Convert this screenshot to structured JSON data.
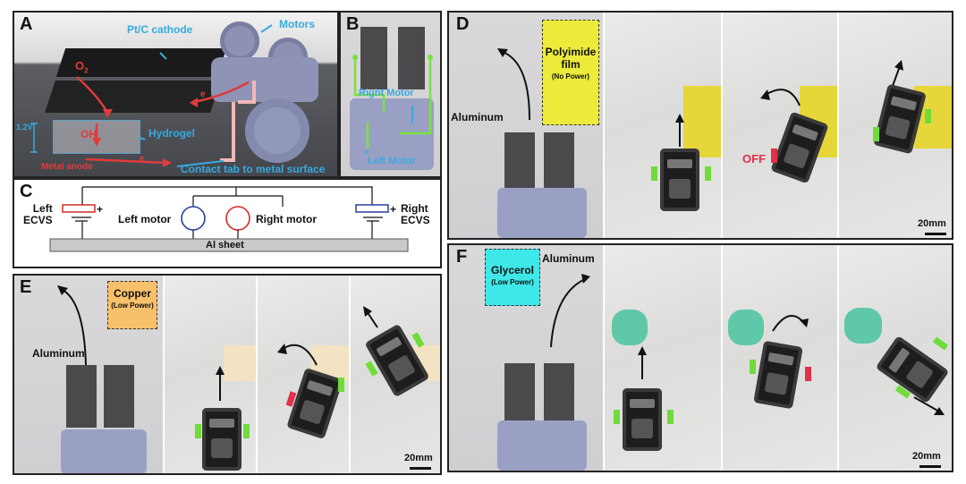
{
  "panels": {
    "A": {
      "label": "A",
      "cathode": "Pt/C cathode",
      "motors": "Motors",
      "o2": "O",
      "o2_sub": "2",
      "voltage": "1.2V",
      "oh": "OH",
      "oh_sup": "-",
      "hydrogel": "Hydrogel",
      "metal_anode": "Metal anode",
      "e1": "e",
      "e2": "e",
      "contact_tab": "Contact tab to metal surface"
    },
    "B": {
      "label": "B",
      "right_motor": "Right Motor",
      "left_motor": "Left Motor"
    },
    "C": {
      "label": "C",
      "left_ecvs": "Left\nECVS",
      "left_motor": "Left motor",
      "right_motor": "Right motor",
      "right_ecvs": "Right\nECVS",
      "al_sheet": "Al sheet",
      "plus": "+"
    },
    "D": {
      "label": "D",
      "aluminum": "Aluminum",
      "film_main": "Polyimide film",
      "film_sub": "(No Power)",
      "off": "OFF",
      "scale": "20mm",
      "colors": {
        "film": "#ecea3a"
      }
    },
    "E": {
      "label": "E",
      "aluminum": "Aluminum",
      "film_main": "Copper",
      "film_sub": "(Low Power)",
      "scale": "20mm",
      "colors": {
        "film": "#f7c06b"
      }
    },
    "F": {
      "label": "F",
      "aluminum": "Aluminum",
      "film_main": "Glycerol",
      "film_sub": "(Low Power)",
      "scale": "20mm",
      "colors": {
        "film": "#3fe8e8"
      }
    }
  },
  "colors": {
    "green": "#6fdc3a",
    "red": "#e0304a",
    "cyan": "#37a9e0",
    "blue_circle": "#2a3f9e",
    "red_circle": "#d62a2a"
  },
  "icons": {
    "arrow": "curved-arrow-icon",
    "motor_circle": "motor-circle-icon"
  }
}
